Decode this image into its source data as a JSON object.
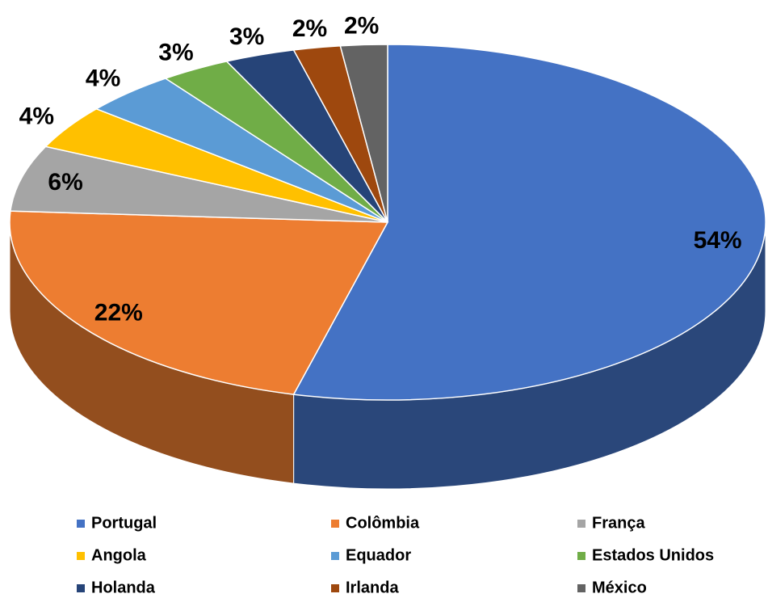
{
  "chart_data": {
    "type": "pie",
    "categories": [
      "Portugal",
      "Colômbia",
      "França",
      "Angola",
      "Equador",
      "Estados Unidos",
      "Holanda",
      "Irlanda",
      "México"
    ],
    "values": [
      54,
      22,
      6,
      4,
      4,
      3,
      3,
      2,
      2
    ],
    "value_labels": [
      "54%",
      "22%",
      "6%",
      "4%",
      "4%",
      "3%",
      "3%",
      "2%",
      "2%"
    ],
    "colors": [
      "#4472c4",
      "#ed7d31",
      "#a5a5a5",
      "#ffc000",
      "#5b9bd5",
      "#70ad47",
      "#264478",
      "#9e480e",
      "#636363"
    ],
    "legend": "bottom"
  }
}
